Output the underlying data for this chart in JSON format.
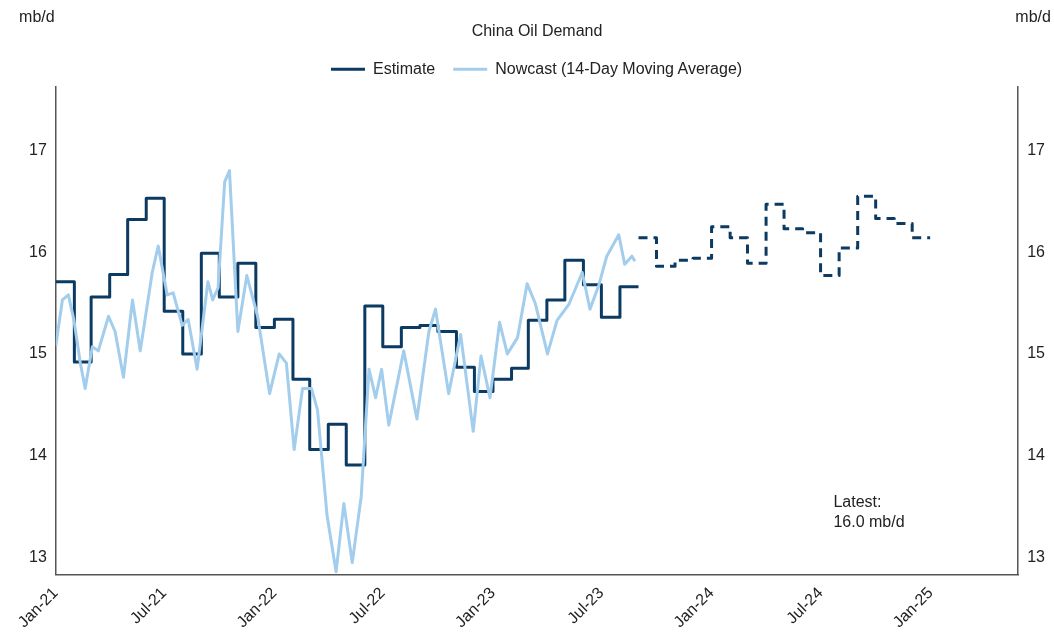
{
  "chart_data": {
    "type": "step",
    "title": "China Oil Demand",
    "ylabel": "mb/d",
    "y2label": "mb/d",
    "xlim": [
      "2021-01-01",
      "2025-05-27"
    ],
    "xticks": [
      {
        "value": "2021-01",
        "label": "Jan-21"
      },
      {
        "value": "2021-07",
        "label": "Jul-21"
      },
      {
        "value": "2022-01",
        "label": "Jan-22"
      },
      {
        "value": "2022-07",
        "label": "Jul-22"
      },
      {
        "value": "2023-01",
        "label": "Jan-23"
      },
      {
        "value": "2023-07",
        "label": "Jul-23"
      },
      {
        "value": "2024-01",
        "label": "Jan-24"
      },
      {
        "value": "2024-07",
        "label": "Jul-24"
      },
      {
        "value": "2025-01",
        "label": "Jan-25"
      }
    ],
    "ylim": [
      12.83,
      17.62
    ],
    "yticks": [
      13,
      14,
      15,
      16,
      17
    ],
    "y2lim": [
      12.83,
      17.62
    ],
    "y2ticks": [
      13,
      14,
      15,
      16,
      17
    ],
    "grid": false,
    "legend": "top",
    "annotations": [
      "Latest:\n16.0 mb/d"
    ],
    "series": [
      {
        "type": "step",
        "color": "#0b3a63",
        "line_style": "solid",
        "x": [
          "2021-01",
          "2021-02",
          "2021-03",
          "2021-04",
          "2021-05",
          "2021-06",
          "2021-07",
          "2021-08",
          "2021-09",
          "2021-10",
          "2021-11",
          "2021-12",
          "2022-01",
          "2022-02",
          "2022-03",
          "2022-04",
          "2022-05",
          "2022-06",
          "2022-07",
          "2022-08",
          "2022-09",
          "2022-10",
          "2022-11",
          "2022-12",
          "2023-01",
          "2023-02",
          "2023-03",
          "2023-04",
          "2023-05",
          "2023-06",
          "2023-07",
          "2023-08",
          "2023-09"
        ],
        "values": [
          15.71,
          14.92,
          15.56,
          15.78,
          16.32,
          16.53,
          15.42,
          15.0,
          15.99,
          15.56,
          15.89,
          15.26,
          15.34,
          14.75,
          14.06,
          14.31,
          13.91,
          15.47,
          15.07,
          15.26,
          15.28,
          15.22,
          14.87,
          14.63,
          14.75,
          14.86,
          15.33,
          15.53,
          15.92,
          15.68,
          15.36,
          15.66,
          15.66
        ]
      },
      {
        "type": "step",
        "name": "Estimate",
        "color": "#0b3a63",
        "line_style": "dashed",
        "x": [
          "2023-09",
          "2023-10",
          "2023-11",
          "2023-12",
          "2024-01",
          "2024-02",
          "2024-03",
          "2024-04",
          "2024-05",
          "2024-06",
          "2024-07",
          "2024-08",
          "2024-09",
          "2024-10",
          "2024-11",
          "2024-12",
          "2024-12-31"
        ],
        "values": [
          16.14,
          15.86,
          15.92,
          15.94,
          16.25,
          16.14,
          15.89,
          16.47,
          16.23,
          16.19,
          15.77,
          16.04,
          16.55,
          16.33,
          16.28,
          16.14,
          16.14
        ]
      },
      {
        "type": "line",
        "name": "Nowcast (14-Day Moving Average)",
        "color": "#a3cdec",
        "line_style": "solid",
        "x": [
          "2021-01-01",
          "2021-01-12",
          "2021-01-22",
          "2021-01-31",
          "2021-02-11",
          "2021-02-19",
          "2021-03-03",
          "2021-03-13",
          "2021-03-30",
          "2021-04-10",
          "2021-04-24",
          "2021-05-09",
          "2021-05-22",
          "2021-06-11",
          "2021-06-21",
          "2021-07-06",
          "2021-07-16",
          "2021-07-31",
          "2021-08-10",
          "2021-08-25",
          "2021-09-12",
          "2021-09-20",
          "2021-09-29",
          "2021-10-10",
          "2021-10-18",
          "2021-11-01",
          "2021-11-16",
          "2021-12-04",
          "2021-12-24",
          "2022-01-09",
          "2022-01-21",
          "2022-02-03",
          "2022-02-17",
          "2022-03-04",
          "2022-03-14",
          "2022-03-30",
          "2022-04-14",
          "2022-04-27",
          "2022-05-11",
          "2022-05-26",
          "2022-06-08",
          "2022-06-19",
          "2022-06-29",
          "2022-07-11",
          "2022-08-05",
          "2022-08-27",
          "2022-09-16",
          "2022-09-27",
          "2022-10-19",
          "2022-11-08",
          "2022-11-29",
          "2022-12-12",
          "2022-12-27",
          "2023-01-12",
          "2023-01-25",
          "2023-02-11",
          "2023-02-27",
          "2023-03-13",
          "2023-04-02",
          "2023-04-18",
          "2023-05-08",
          "2023-05-30",
          "2023-06-12",
          "2023-06-27",
          "2023-07-10",
          "2023-07-30",
          "2023-08-09",
          "2023-08-21",
          "2023-08-26"
        ],
        "values": [
          15.08,
          15.53,
          15.58,
          15.34,
          14.91,
          14.66,
          15.07,
          15.03,
          15.37,
          15.22,
          14.77,
          15.53,
          15.03,
          15.8,
          16.06,
          15.58,
          15.6,
          15.28,
          15.34,
          14.85,
          15.71,
          15.53,
          15.65,
          16.69,
          16.8,
          15.22,
          15.77,
          15.37,
          14.61,
          15.0,
          14.91,
          14.06,
          14.66,
          14.66,
          14.45,
          13.41,
          12.86,
          13.53,
          12.95,
          13.6,
          14.85,
          14.57,
          14.85,
          14.3,
          15.03,
          14.36,
          15.22,
          15.44,
          14.61,
          15.19,
          14.24,
          14.98,
          14.57,
          15.31,
          15.0,
          15.16,
          15.69,
          15.49,
          15.0,
          15.33,
          15.49,
          15.8,
          15.44,
          15.68,
          15.96,
          16.17,
          15.88,
          15.96,
          15.91
        ]
      }
    ]
  }
}
